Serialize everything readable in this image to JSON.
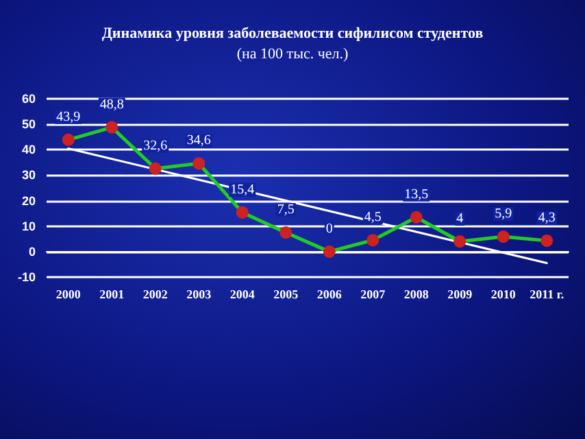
{
  "chart_data": {
    "type": "line",
    "title": "Динамика уровня заболеваемости сифилисом студентов",
    "subtitle": "(на 100 тыс. чел.)",
    "categories": [
      "2000",
      "2001",
      "2002",
      "2003",
      "2004",
      "2005",
      "2006",
      "2007",
      "2008",
      "2009",
      "2010",
      "2011 г."
    ],
    "series": [
      {
        "color": "#22cc22",
        "colors": [
          "#cc2222",
          "#cc2222",
          "#cc2222",
          "#cc2222",
          "#cc2222",
          "#cc2222",
          "#cc2222",
          "#cc2222",
          "#cc2222",
          "#cc2222",
          "#cc2222",
          "#cc2222"
        ],
        "values": [
          43.9,
          48.8,
          32.6,
          34.6,
          15.4,
          7.5,
          0,
          4.5,
          13.5,
          4,
          5.9,
          4.3
        ],
        "value_labels": [
          "43,9",
          "48,8",
          "32,6",
          "34,6",
          "15,4",
          "7,5",
          "0",
          "4,5",
          "13,5",
          "4",
          "5,9",
          "4,3"
        ]
      },
      {
        "type": "line",
        "color": "#ffffff",
        "marker": "none",
        "values": [
          40.5,
          null,
          null,
          null,
          null,
          null,
          null,
          null,
          null,
          null,
          null,
          -4.5
        ]
      }
    ],
    "ylim": [
      -10,
      60
    ],
    "yticks": [
      -10,
      0,
      10,
      20,
      30,
      40,
      50,
      60
    ],
    "grid": "y",
    "marker": "circle",
    "line_style": "solid"
  }
}
